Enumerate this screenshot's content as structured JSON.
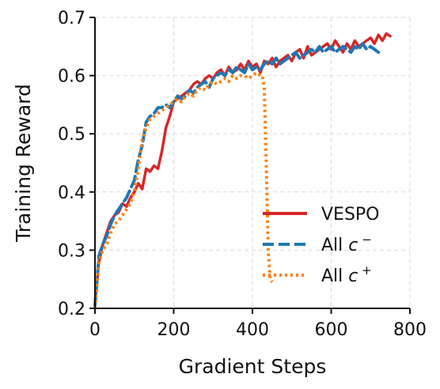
{
  "chart_data": {
    "type": "line",
    "xlabel": "Gradient Steps",
    "ylabel": "Training Reward",
    "xlim": [
      0,
      800
    ],
    "ylim": [
      0.2,
      0.7
    ],
    "xticks": [
      0,
      200,
      400,
      600,
      800
    ],
    "xtick_labels": [
      "0",
      "200",
      "400",
      "600",
      "800"
    ],
    "yticks": [
      0.2,
      0.3,
      0.4,
      0.5,
      0.6,
      0.7
    ],
    "ytick_labels": [
      "0.2",
      "0.3",
      "0.4",
      "0.5",
      "0.6",
      "0.7"
    ],
    "grid": true,
    "legend_position": "lower-right",
    "series": [
      {
        "name": "VESPO",
        "color": "#d62728",
        "style": "solid",
        "x": [
          0,
          10,
          20,
          30,
          40,
          50,
          60,
          70,
          80,
          90,
          100,
          110,
          120,
          130,
          140,
          150,
          160,
          170,
          180,
          190,
          200,
          210,
          220,
          230,
          240,
          250,
          260,
          270,
          280,
          290,
          300,
          310,
          320,
          330,
          340,
          350,
          360,
          370,
          380,
          390,
          400,
          410,
          420,
          430,
          440,
          450,
          460,
          470,
          480,
          490,
          500,
          510,
          520,
          530,
          540,
          550,
          560,
          570,
          580,
          590,
          600,
          610,
          620,
          630,
          640,
          650,
          660,
          670,
          680,
          690,
          700,
          710,
          720,
          730,
          740,
          750
        ],
        "values": [
          0.21,
          0.28,
          0.31,
          0.33,
          0.35,
          0.36,
          0.365,
          0.38,
          0.375,
          0.39,
          0.4,
          0.415,
          0.405,
          0.44,
          0.435,
          0.445,
          0.44,
          0.47,
          0.51,
          0.53,
          0.555,
          0.56,
          0.565,
          0.57,
          0.575,
          0.585,
          0.59,
          0.585,
          0.595,
          0.6,
          0.595,
          0.605,
          0.61,
          0.6,
          0.615,
          0.605,
          0.61,
          0.62,
          0.61,
          0.625,
          0.615,
          0.62,
          0.605,
          0.625,
          0.62,
          0.63,
          0.615,
          0.625,
          0.63,
          0.635,
          0.625,
          0.64,
          0.645,
          0.63,
          0.65,
          0.635,
          0.64,
          0.645,
          0.65,
          0.655,
          0.645,
          0.66,
          0.65,
          0.64,
          0.655,
          0.645,
          0.66,
          0.65,
          0.655,
          0.66,
          0.665,
          0.655,
          0.67,
          0.66,
          0.672,
          0.668
        ]
      },
      {
        "name": "All $c^-$",
        "color": "#1f77b4",
        "style": "dashed",
        "x": [
          0,
          10,
          20,
          30,
          40,
          50,
          60,
          70,
          80,
          90,
          100,
          110,
          120,
          130,
          140,
          150,
          160,
          170,
          180,
          190,
          200,
          210,
          220,
          230,
          240,
          250,
          260,
          270,
          280,
          290,
          300,
          310,
          320,
          330,
          340,
          350,
          360,
          370,
          380,
          390,
          400,
          410,
          420,
          430,
          440,
          450,
          460,
          470,
          480,
          490,
          500,
          510,
          520,
          530,
          540,
          550,
          560,
          570,
          580,
          590,
          600,
          610,
          620,
          630,
          640,
          650,
          660,
          670,
          680,
          690,
          700,
          710,
          720
        ],
        "values": [
          0.205,
          0.29,
          0.31,
          0.325,
          0.345,
          0.36,
          0.37,
          0.38,
          0.39,
          0.405,
          0.42,
          0.455,
          0.48,
          0.52,
          0.53,
          0.535,
          0.545,
          0.545,
          0.55,
          0.545,
          0.555,
          0.565,
          0.56,
          0.565,
          0.575,
          0.57,
          0.58,
          0.585,
          0.59,
          0.58,
          0.595,
          0.6,
          0.605,
          0.6,
          0.61,
          0.605,
          0.615,
          0.61,
          0.605,
          0.62,
          0.61,
          0.615,
          0.61,
          0.62,
          0.625,
          0.62,
          0.63,
          0.62,
          0.625,
          0.63,
          0.635,
          0.64,
          0.63,
          0.635,
          0.64,
          0.645,
          0.64,
          0.65,
          0.64,
          0.645,
          0.65,
          0.64,
          0.645,
          0.65,
          0.645,
          0.64,
          0.65,
          0.645,
          0.655,
          0.645,
          0.65,
          0.645,
          0.64
        ]
      },
      {
        "name": "All $c^+$",
        "color": "#ff7f0e",
        "style": "dotted",
        "x": [
          0,
          10,
          20,
          30,
          40,
          50,
          60,
          70,
          80,
          90,
          100,
          110,
          120,
          130,
          140,
          150,
          160,
          170,
          180,
          190,
          200,
          210,
          220,
          230,
          240,
          250,
          260,
          270,
          280,
          290,
          300,
          310,
          320,
          330,
          340,
          350,
          360,
          370,
          380,
          390,
          400,
          410,
          420,
          425,
          430,
          435,
          440,
          445,
          450
        ],
        "values": [
          0.2,
          0.28,
          0.3,
          0.31,
          0.33,
          0.345,
          0.35,
          0.36,
          0.37,
          0.38,
          0.4,
          0.44,
          0.49,
          0.51,
          0.525,
          0.53,
          0.535,
          0.54,
          0.545,
          0.55,
          0.555,
          0.56,
          0.555,
          0.565,
          0.57,
          0.565,
          0.575,
          0.58,
          0.575,
          0.585,
          0.59,
          0.585,
          0.59,
          0.595,
          0.59,
          0.6,
          0.595,
          0.6,
          0.6,
          0.595,
          0.6,
          0.605,
          0.6,
          0.6,
          0.58,
          0.45,
          0.3,
          0.25,
          0.245
        ]
      }
    ]
  }
}
